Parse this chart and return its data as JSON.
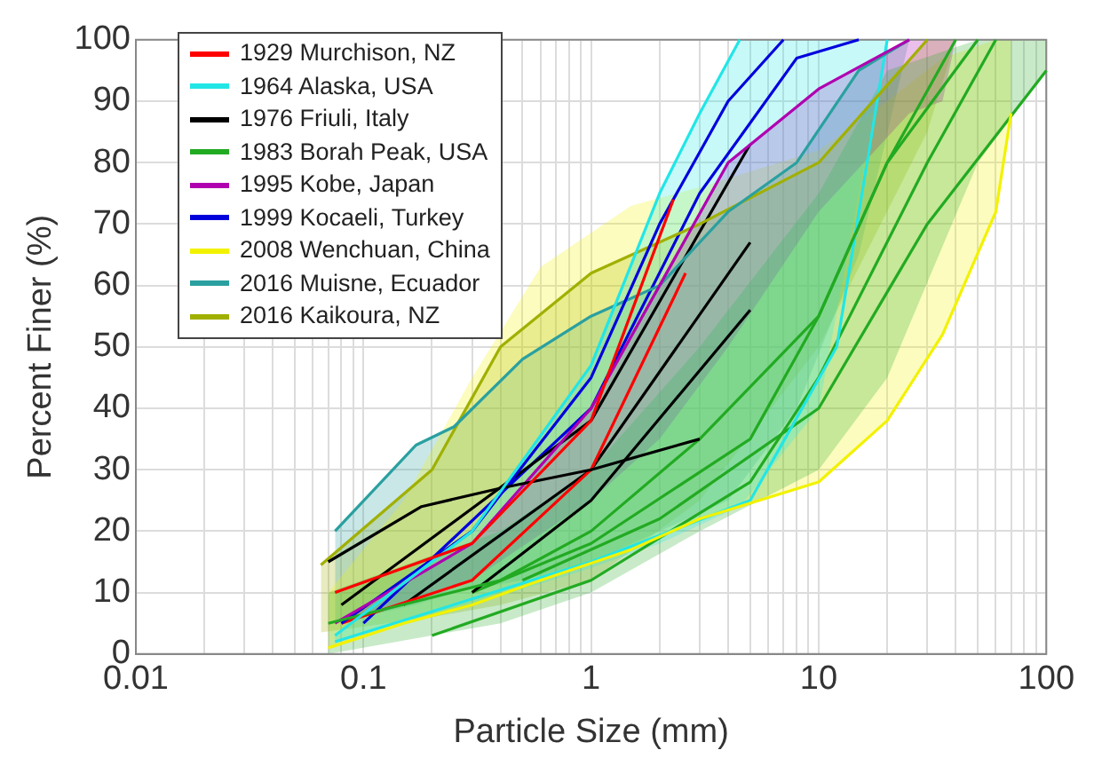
{
  "chart_data": {
    "type": "line",
    "xlabel": "Particle Size (mm)",
    "ylabel": "Percent Finer (%)",
    "log": "x",
    "grid": true,
    "legend": "top left",
    "marker": "none",
    "line_style": "solid",
    "xlim": [
      0.01,
      100
    ],
    "ylim": [
      0,
      100
    ],
    "xticks": [
      0.01,
      {
        "value": 0.02,
        "label": null
      },
      {
        "value": 0.03,
        "label": null
      },
      {
        "value": 0.04,
        "label": null
      },
      {
        "value": 0.05,
        "label": null
      },
      {
        "value": 0.06,
        "label": null
      },
      {
        "value": 0.07,
        "label": null
      },
      {
        "value": 0.08,
        "label": null
      },
      {
        "value": 0.09,
        "label": null
      },
      0.1,
      {
        "value": 0.2,
        "label": null
      },
      {
        "value": 0.3,
        "label": null
      },
      {
        "value": 0.4,
        "label": null
      },
      {
        "value": 0.5,
        "label": null
      },
      {
        "value": 0.6,
        "label": null
      },
      {
        "value": 0.7,
        "label": null
      },
      {
        "value": 0.8,
        "label": null
      },
      {
        "value": 0.9,
        "label": null
      },
      1,
      {
        "value": 2,
        "label": null
      },
      {
        "value": 3,
        "label": null
      },
      {
        "value": 4,
        "label": null
      },
      {
        "value": 5,
        "label": null
      },
      {
        "value": 6,
        "label": null
      },
      {
        "value": 7,
        "label": null
      },
      {
        "value": 8,
        "label": null
      },
      {
        "value": 9,
        "label": null
      },
      10,
      {
        "value": 20,
        "label": null
      },
      {
        "value": 30,
        "label": null
      },
      {
        "value": 40,
        "label": null
      },
      {
        "value": 50,
        "label": null
      },
      {
        "value": 60,
        "label": null
      },
      {
        "value": 70,
        "label": null
      },
      {
        "value": 80,
        "label": null
      },
      {
        "value": 90,
        "label": null
      },
      100
    ],
    "yticks": [
      0,
      10,
      20,
      30,
      40,
      50,
      60,
      70,
      80,
      90,
      100
    ],
    "series": [
      {
        "name": "1929 Murchison, NZ",
        "color": "#ff0000",
        "x": [
          0.075,
          0.3,
          1,
          2.3
        ],
        "values": [
          10,
          18,
          38,
          74
        ]
      },
      {
        "name": "1964 Alaska, USA",
        "color": "#22e6e6",
        "x": [
          0.075,
          0.3,
          1,
          2,
          3,
          4.5,
          10,
          15,
          20
        ],
        "values": [
          3,
          20,
          47,
          75,
          88,
          100,
          null,
          null,
          null
        ],
        "lower": [
          2,
          8,
          14,
          18,
          21,
          24,
          40,
          75,
          100
        ],
        "upper": [
          3,
          20,
          47,
          75,
          88,
          100,
          100,
          100,
          100
        ]
      },
      {
        "name": "1976 Friuli, Italy",
        "color": "#000000",
        "x": [
          0.07,
          0.18,
          0.4,
          1,
          3
        ],
        "values": [
          15,
          24,
          27,
          30,
          35
        ]
      },
      {
        "name": "1983 Borah Peak, USA",
        "color": "#22aa22",
        "x": [
          0.07,
          0.4,
          1,
          3,
          10,
          20,
          50,
          100
        ],
        "values": [
          5,
          12,
          20,
          35,
          55,
          80,
          100,
          null
        ],
        "lower": [
          0,
          5,
          10,
          20,
          30,
          45,
          80,
          95
        ],
        "upper": [
          10,
          20,
          30,
          50,
          75,
          95,
          100,
          100
        ]
      },
      {
        "name": "1995 Kobe, Japan",
        "color": "#b000b0",
        "x": [
          0.075,
          0.3,
          1,
          2,
          4,
          10,
          25,
          35,
          40
        ],
        "values": [
          5,
          18,
          40,
          60,
          80,
          92,
          100,
          null,
          null
        ],
        "lower": [
          5,
          12,
          25,
          35,
          50,
          72,
          88,
          90,
          100
        ],
        "upper": [
          5,
          18,
          40,
          60,
          80,
          92,
          100,
          100,
          100
        ]
      },
      {
        "name": "1999 Kocaeli, Turkey",
        "color": "#0000dd",
        "x": [
          0.08,
          0.3,
          1,
          2,
          4,
          7
        ],
        "values": [
          5,
          20,
          45,
          70,
          90,
          100
        ]
      },
      {
        "name": "2008 Wenchuan, China",
        "color": "#f2f200",
        "x": [
          0.07,
          0.15,
          0.3,
          0.6,
          1.5,
          3,
          10,
          20,
          35,
          60,
          70
        ],
        "values": [
          1,
          5,
          8,
          12,
          17,
          22,
          28,
          38,
          52,
          72,
          88
        ],
        "lower": [
          1,
          5,
          8,
          12,
          17,
          22,
          28,
          38,
          52,
          72,
          88
        ],
        "upper": [
          10,
          25,
          45,
          63,
          73,
          76,
          82,
          90,
          97,
          100,
          100
        ]
      },
      {
        "name": "2016 Muisne, Ecuador",
        "color": "#2aa0a0",
        "x": [
          0.075,
          0.17,
          0.25,
          0.5,
          1,
          2,
          4,
          8,
          15,
          25
        ],
        "values": [
          20,
          34,
          37,
          48,
          55,
          60,
          72,
          80,
          95,
          100
        ],
        "lower": [
          5,
          8,
          10,
          12,
          15,
          20,
          25,
          40,
          65,
          100
        ],
        "upper": [
          20,
          34,
          37,
          48,
          55,
          60,
          72,
          80,
          95,
          100
        ]
      },
      {
        "name": "2016 Kaikoura, NZ",
        "color": "#a0b000",
        "x": [
          0.065,
          0.2,
          0.4,
          1,
          3,
          10,
          30,
          40
        ],
        "values": [
          14.5,
          30,
          50,
          62,
          70,
          80,
          100,
          null
        ],
        "lower": [
          3.5,
          6,
          8,
          12,
          25,
          50,
          85,
          100
        ],
        "upper": [
          14.5,
          30,
          50,
          62,
          70,
          80,
          100,
          100
        ]
      },
      {
        "color": "#ff0000",
        "x": [
          0.08,
          0.3,
          1,
          2.6
        ],
        "values": [
          5,
          12,
          30,
          62
        ]
      },
      {
        "color": "#22e6e6",
        "x": [
          0.075,
          1,
          5,
          12,
          20
        ],
        "values": [
          2,
          15,
          25,
          50,
          100
        ]
      },
      {
        "color": "#000000",
        "x": [
          0.08,
          1,
          5
        ],
        "values": [
          8,
          38,
          83
        ]
      },
      {
        "color": "#000000",
        "x": [
          0.15,
          1,
          5
        ],
        "values": [
          8,
          30,
          67
        ]
      },
      {
        "color": "#000000",
        "x": [
          0.3,
          1,
          5
        ],
        "values": [
          10,
          25,
          56
        ]
      },
      {
        "color": "#22aa22",
        "x": [
          0.2,
          1,
          5,
          10,
          30,
          60
        ],
        "values": [
          3,
          12,
          28,
          45,
          80,
          100
        ]
      },
      {
        "color": "#22aa22",
        "x": [
          0.3,
          1,
          5,
          10,
          20,
          40
        ],
        "values": [
          10,
          18,
          35,
          55,
          80,
          100
        ]
      },
      {
        "color": "#22aa22",
        "x": [
          0.5,
          2,
          10,
          30,
          100
        ],
        "values": [
          12,
          22,
          40,
          70,
          95
        ]
      },
      {
        "color": "#0000dd",
        "x": [
          0.1,
          1,
          3,
          8,
          15
        ],
        "values": [
          5,
          40,
          75,
          97,
          100
        ]
      }
    ]
  }
}
